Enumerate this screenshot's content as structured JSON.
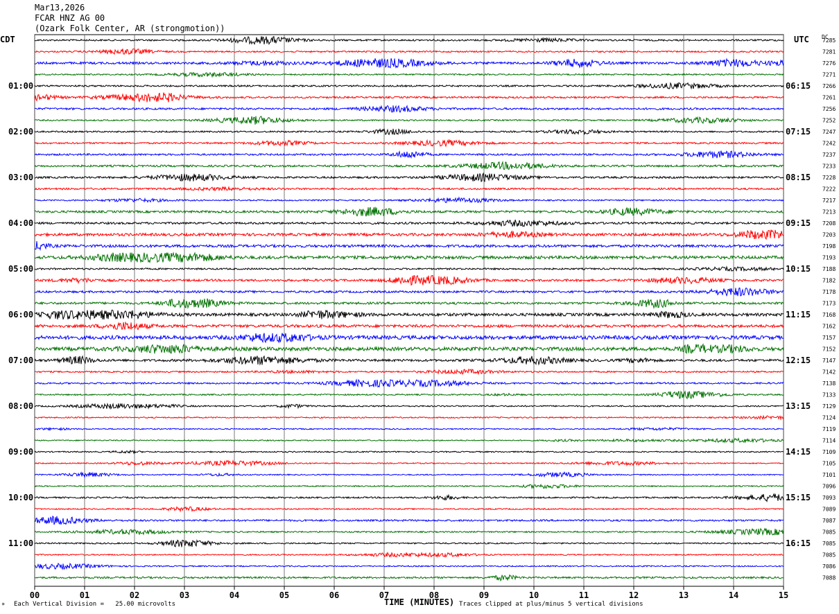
{
  "header": {
    "date": "Mar13,2026",
    "station": "FCAR HNZ AG 00",
    "location": "(Ozark Folk Center, AR (strongmotion))"
  },
  "left_tz": "CDT",
  "right_tz": "UTC",
  "dc_label": "DC",
  "footer": {
    "scale_note": "Each Vertical Division =   25.00 microvolts",
    "xlabel": "TIME (MINUTES)",
    "clip_note": "Traces clipped at plus/minus 5 vertical divisions",
    "corner_mark": "*"
  },
  "chart_data": {
    "type": "line",
    "xlabel": "TIME (MINUTES)",
    "xlim": [
      0,
      15
    ],
    "x_ticks": [
      "00",
      "01",
      "02",
      "03",
      "04",
      "05",
      "06",
      "07",
      "08",
      "09",
      "10",
      "11",
      "12",
      "13",
      "14",
      "15"
    ],
    "grid": "vertical lines each minute",
    "trace_colors": [
      "#000000",
      "#ff0000",
      "#0000ff",
      "#007000"
    ],
    "left_time_labels": [
      "01:00",
      "02:00",
      "03:00",
      "04:00",
      "05:00",
      "06:00",
      "07:00",
      "08:00",
      "09:00",
      "10:00",
      "11:00"
    ],
    "right_time_labels": [
      "06:15",
      "07:15",
      "08:15",
      "09:15",
      "10:15",
      "11:15",
      "12:15",
      "13:15",
      "14:15",
      "15:15",
      "16:15"
    ],
    "dc_offsets": [
      7285,
      7281,
      7276,
      7271,
      7266,
      7261,
      7256,
      7252,
      7247,
      7242,
      7237,
      7233,
      7228,
      7222,
      7217,
      7213,
      7208,
      7203,
      7198,
      7193,
      7188,
      7182,
      7178,
      7173,
      7168,
      7162,
      7157,
      7152,
      7147,
      7142,
      7138,
      7133,
      7129,
      7124,
      7119,
      7114,
      7109,
      7105,
      7101,
      7096,
      7093,
      7089,
      7087,
      7085,
      7085,
      7085,
      7086,
      7088
    ],
    "trace_activity": [
      1.2,
      1.1,
      1.6,
      1.0,
      1.2,
      1.3,
      1.4,
      1.0,
      1.1,
      1.2,
      1.3,
      1.4,
      1.4,
      1.3,
      1.0,
      1.6,
      1.5,
      2.0,
      1.9,
      2.2,
      1.2,
      1.6,
      1.5,
      1.6,
      2.1,
      2.0,
      2.7,
      2.6,
      1.7,
      1.1,
      1.2,
      1.0,
      1.0,
      0.9,
      0.8,
      0.8,
      0.9,
      0.8,
      0.8,
      0.9,
      1.1,
      0.9,
      1.3,
      1.0,
      1.0,
      0.9,
      0.9,
      1.3
    ]
  }
}
